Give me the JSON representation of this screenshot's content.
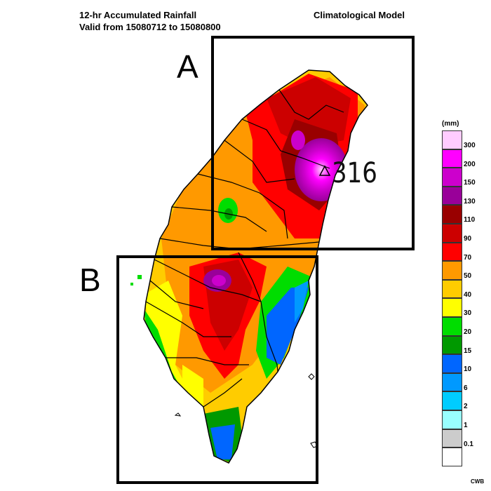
{
  "header": {
    "title_line1": "12-hr Accumulated Rainfall",
    "title_line2": "Valid from 15080712 to 15080800",
    "model": "Climatological Model"
  },
  "boxes": [
    {
      "id": "A",
      "label": "A"
    },
    {
      "id": "B",
      "label": "B"
    }
  ],
  "max_marker": {
    "symbol": "triangle-icon",
    "value": "316"
  },
  "legend": {
    "unit": "(mm)",
    "items": [
      {
        "label": "300",
        "color": "#ffccff"
      },
      {
        "label": "200",
        "color": "#ff00ff"
      },
      {
        "label": "150",
        "color": "#cc00cc"
      },
      {
        "label": "130",
        "color": "#990099"
      },
      {
        "label": "110",
        "color": "#990000"
      },
      {
        "label": "90",
        "color": "#cc0000"
      },
      {
        "label": "70",
        "color": "#ff0000"
      },
      {
        "label": "50",
        "color": "#ff9900"
      },
      {
        "label": "40",
        "color": "#ffcc00"
      },
      {
        "label": "30",
        "color": "#ffff00"
      },
      {
        "label": "20",
        "color": "#00dd00"
      },
      {
        "label": "15",
        "color": "#009900"
      },
      {
        "label": "10",
        "color": "#0066ff"
      },
      {
        "label": "6",
        "color": "#0099ff"
      },
      {
        "label": "2",
        "color": "#00ccff"
      },
      {
        "label": "1",
        "color": "#99ffff"
      },
      {
        "label": "0.1",
        "color": "#cccccc"
      },
      {
        "label": "",
        "color": "#ffffff"
      }
    ]
  },
  "credit": "CWB"
}
